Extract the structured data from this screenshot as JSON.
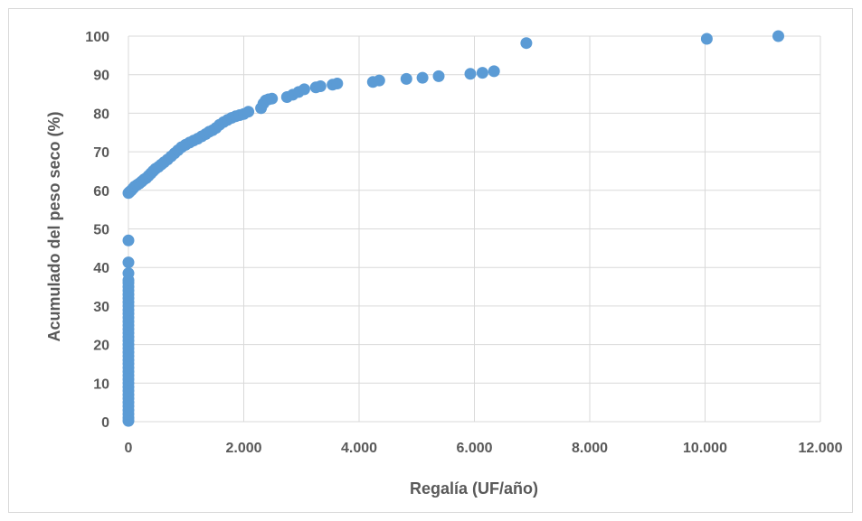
{
  "chart_data": {
    "type": "scatter",
    "title": "",
    "xlabel": "Regalía (UF/año)",
    "ylabel": "Acumulado del peso seco (%)",
    "xlim": [
      0,
      12000
    ],
    "ylim": [
      0,
      100
    ],
    "x_ticks": [
      0,
      2000,
      4000,
      6000,
      8000,
      10000,
      12000
    ],
    "x_tick_labels": [
      "0",
      "2.000",
      "4.000",
      "6.000",
      "8.000",
      "10.000",
      "12.000"
    ],
    "y_ticks": [
      0,
      10,
      20,
      30,
      40,
      50,
      60,
      70,
      80,
      90,
      100
    ],
    "y_tick_labels": [
      "0",
      "10",
      "20",
      "30",
      "40",
      "50",
      "60",
      "70",
      "80",
      "90",
      "100"
    ],
    "grid": "vertical-and-horizontal",
    "legend": "none",
    "color": "#5b9bd5",
    "series": [
      {
        "values_xy": [
          [
            0,
            0.2
          ],
          [
            0,
            1.0
          ],
          [
            0,
            2.0
          ],
          [
            0,
            3.0
          ],
          [
            0,
            4.0
          ],
          [
            0,
            5.0
          ],
          [
            0,
            6.0
          ],
          [
            0,
            7.0
          ],
          [
            0,
            8.0
          ],
          [
            0,
            9.0
          ],
          [
            0,
            10.0
          ],
          [
            0,
            11.0
          ],
          [
            0,
            12.0
          ],
          [
            0,
            13.0
          ],
          [
            0,
            14.0
          ],
          [
            0,
            15.0
          ],
          [
            0,
            16.0
          ],
          [
            0,
            17.0
          ],
          [
            0,
            18.0
          ],
          [
            0,
            19.0
          ],
          [
            0,
            20.0
          ],
          [
            0,
            21.0
          ],
          [
            0,
            22.0
          ],
          [
            0,
            23.0
          ],
          [
            0,
            24.0
          ],
          [
            0,
            25.0
          ],
          [
            0,
            26.0
          ],
          [
            0,
            27.0
          ],
          [
            0,
            28.0
          ],
          [
            0,
            29.0
          ],
          [
            0,
            30.0
          ],
          [
            0,
            31.0
          ],
          [
            0,
            32.0
          ],
          [
            0,
            33.0
          ],
          [
            0,
            34.0
          ],
          [
            0,
            35.0
          ],
          [
            0,
            36.0
          ],
          [
            0,
            36.7
          ],
          [
            0,
            38.5
          ],
          [
            0,
            41.3
          ],
          [
            0,
            47.0
          ],
          [
            0,
            59.3
          ],
          [
            20,
            59.6
          ],
          [
            50,
            60.0
          ],
          [
            80,
            60.5
          ],
          [
            110,
            61.0
          ],
          [
            150,
            61.4
          ],
          [
            190,
            61.8
          ],
          [
            230,
            62.3
          ],
          [
            270,
            62.8
          ],
          [
            310,
            63.2
          ],
          [
            350,
            63.8
          ],
          [
            390,
            64.4
          ],
          [
            430,
            65.0
          ],
          [
            470,
            65.6
          ],
          [
            520,
            66.1
          ],
          [
            570,
            66.7
          ],
          [
            620,
            67.3
          ],
          [
            680,
            68.0
          ],
          [
            740,
            68.8
          ],
          [
            800,
            69.6
          ],
          [
            860,
            70.4
          ],
          [
            920,
            71.2
          ],
          [
            990,
            71.8
          ],
          [
            1060,
            72.4
          ],
          [
            1130,
            72.9
          ],
          [
            1200,
            73.4
          ],
          [
            1270,
            74.0
          ],
          [
            1340,
            74.6
          ],
          [
            1400,
            75.2
          ],
          [
            1460,
            75.6
          ],
          [
            1520,
            76.2
          ],
          [
            1580,
            77.0
          ],
          [
            1650,
            77.7
          ],
          [
            1720,
            78.3
          ],
          [
            1790,
            78.8
          ],
          [
            1860,
            79.2
          ],
          [
            1930,
            79.5
          ],
          [
            2000,
            79.8
          ],
          [
            2080,
            80.4
          ],
          [
            2300,
            81.3
          ],
          [
            2340,
            82.5
          ],
          [
            2380,
            83.3
          ],
          [
            2430,
            83.6
          ],
          [
            2490,
            83.8
          ],
          [
            2750,
            84.2
          ],
          [
            2850,
            84.8
          ],
          [
            2950,
            85.5
          ],
          [
            3050,
            86.2
          ],
          [
            3250,
            86.7
          ],
          [
            3330,
            87.0
          ],
          [
            3540,
            87.4
          ],
          [
            3620,
            87.7
          ],
          [
            4240,
            88.1
          ],
          [
            4350,
            88.5
          ],
          [
            4820,
            88.9
          ],
          [
            5100,
            89.2
          ],
          [
            5380,
            89.6
          ],
          [
            5930,
            90.2
          ],
          [
            6140,
            90.5
          ],
          [
            6340,
            90.9
          ],
          [
            6900,
            98.2
          ],
          [
            10030,
            99.3
          ],
          [
            11270,
            100.0
          ]
        ]
      }
    ]
  }
}
